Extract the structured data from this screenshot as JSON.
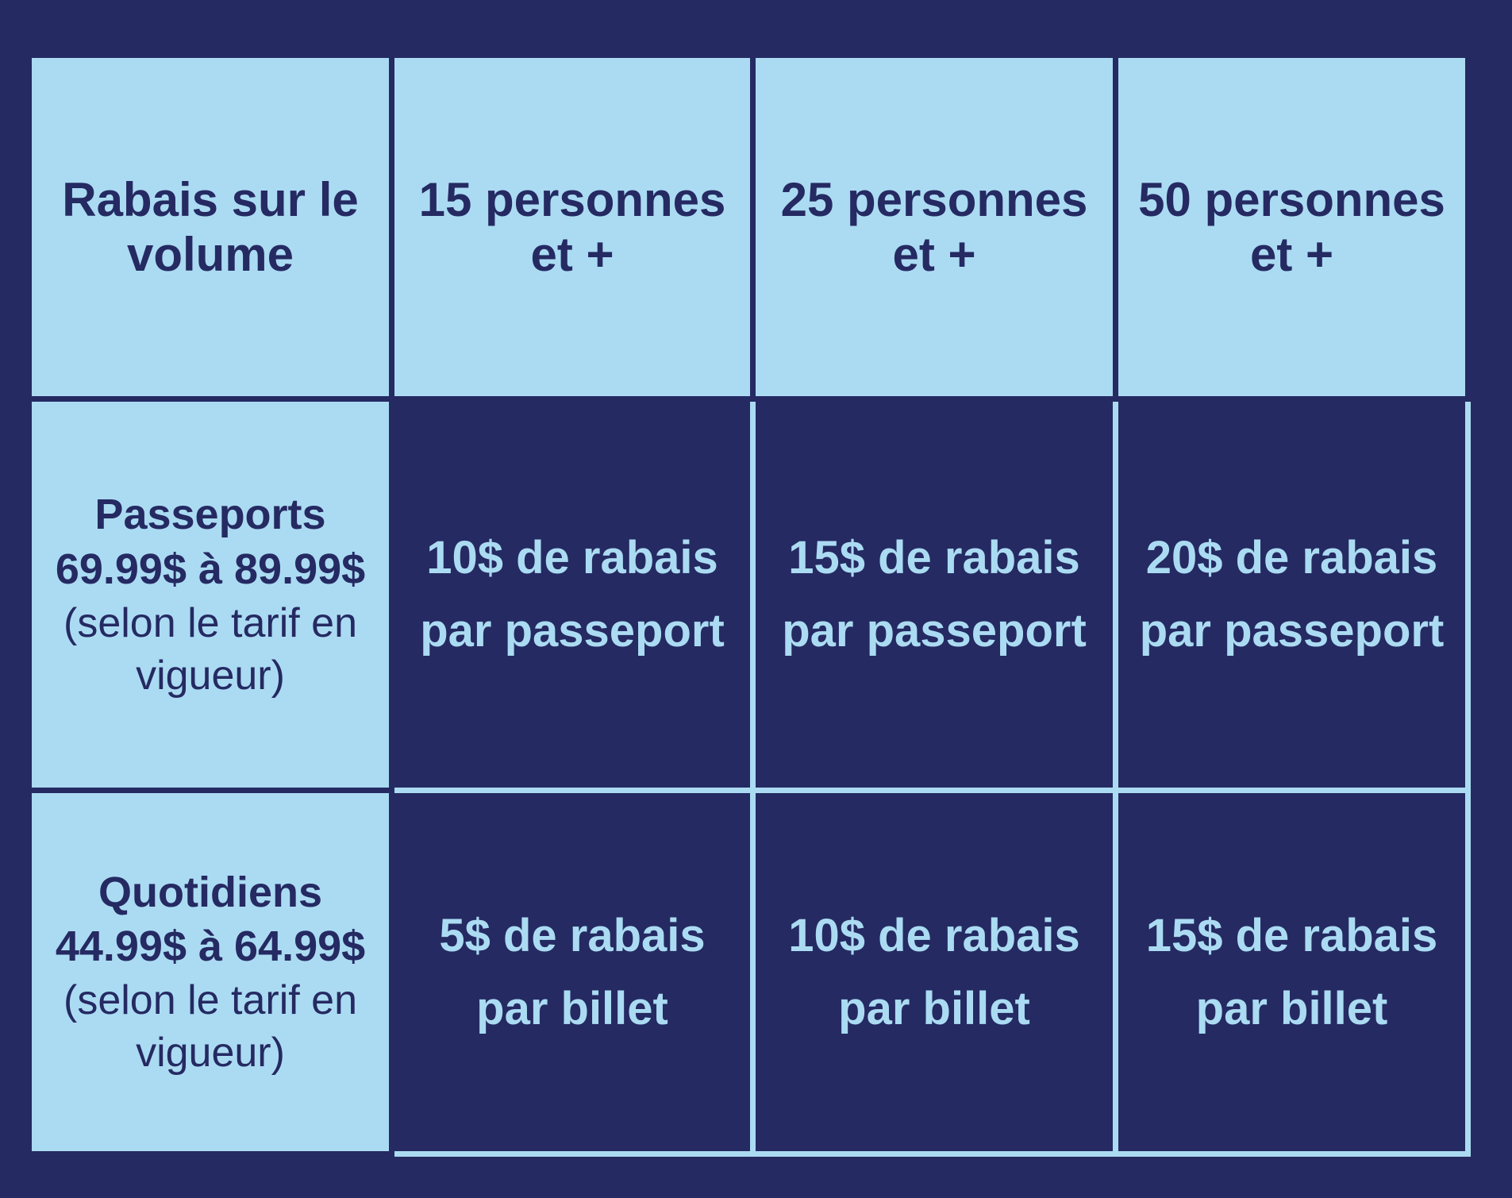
{
  "colors": {
    "background_navy": "#252a62",
    "cell_light_blue": "#abdbf2",
    "text_navy": "#252a62",
    "text_light_blue": "#abdbf2"
  },
  "table": {
    "header": {
      "corner": "Rabais sur le volume",
      "columns": [
        "15 personnes et +",
        "25 personnes et +",
        "50 personnes et +"
      ]
    },
    "rows": [
      {
        "product": "Passeports",
        "price_range": "69.99$ à 89.99$",
        "note": "(selon le tarif en vigueur)",
        "discounts": [
          "10$ de rabais par passeport",
          "15$ de rabais par passeport",
          "20$ de rabais par passeport"
        ]
      },
      {
        "product": "Quotidiens",
        "price_range": "44.99$ à 64.99$",
        "note": "(selon le tarif en vigueur)",
        "discounts": [
          "5$ de rabais par billet",
          "10$ de rabais par billet",
          "15$ de rabais par billet"
        ]
      }
    ]
  },
  "chart_data": {
    "type": "table",
    "title": "Rabais sur le volume",
    "columns": [
      "Rabais sur le volume",
      "15 personnes et +",
      "25 personnes et +",
      "50 personnes et +"
    ],
    "rows": [
      [
        "Passeports 69.99$ à 89.99$ (selon le tarif en vigueur)",
        "10$ de rabais par passeport",
        "15$ de rabais par passeport",
        "20$ de rabais par passeport"
      ],
      [
        "Quotidiens 44.99$ à 64.99$ (selon le tarif en vigueur)",
        "5$ de rabais par billet",
        "10$ de rabais par billet",
        "15$ de rabais par billet"
      ]
    ],
    "legend_position": "none",
    "grid": true
  }
}
